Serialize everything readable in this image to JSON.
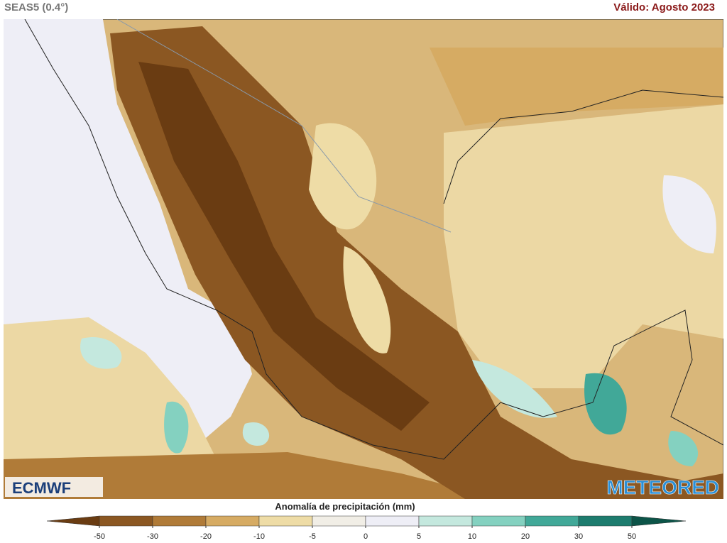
{
  "header": {
    "model": "SEAS5 (0.4°)",
    "valid": "Válido: Agosto 2023"
  },
  "logos": {
    "left": "ECMWF",
    "right": "METEORED"
  },
  "legend": {
    "title": "Anomalía de precipitación (mm)",
    "ticks": [
      -50,
      -30,
      -20,
      -10,
      -5,
      0,
      5,
      10,
      20,
      30,
      50
    ],
    "colors": [
      "#6a3c12",
      "#8b5722",
      "#b07b38",
      "#d6ab63",
      "#eedca6",
      "#f1eee6",
      "#eeeef6",
      "#c4e8de",
      "#84d1c0",
      "#41a898",
      "#1d7c6e",
      "#0c5448"
    ]
  }
}
